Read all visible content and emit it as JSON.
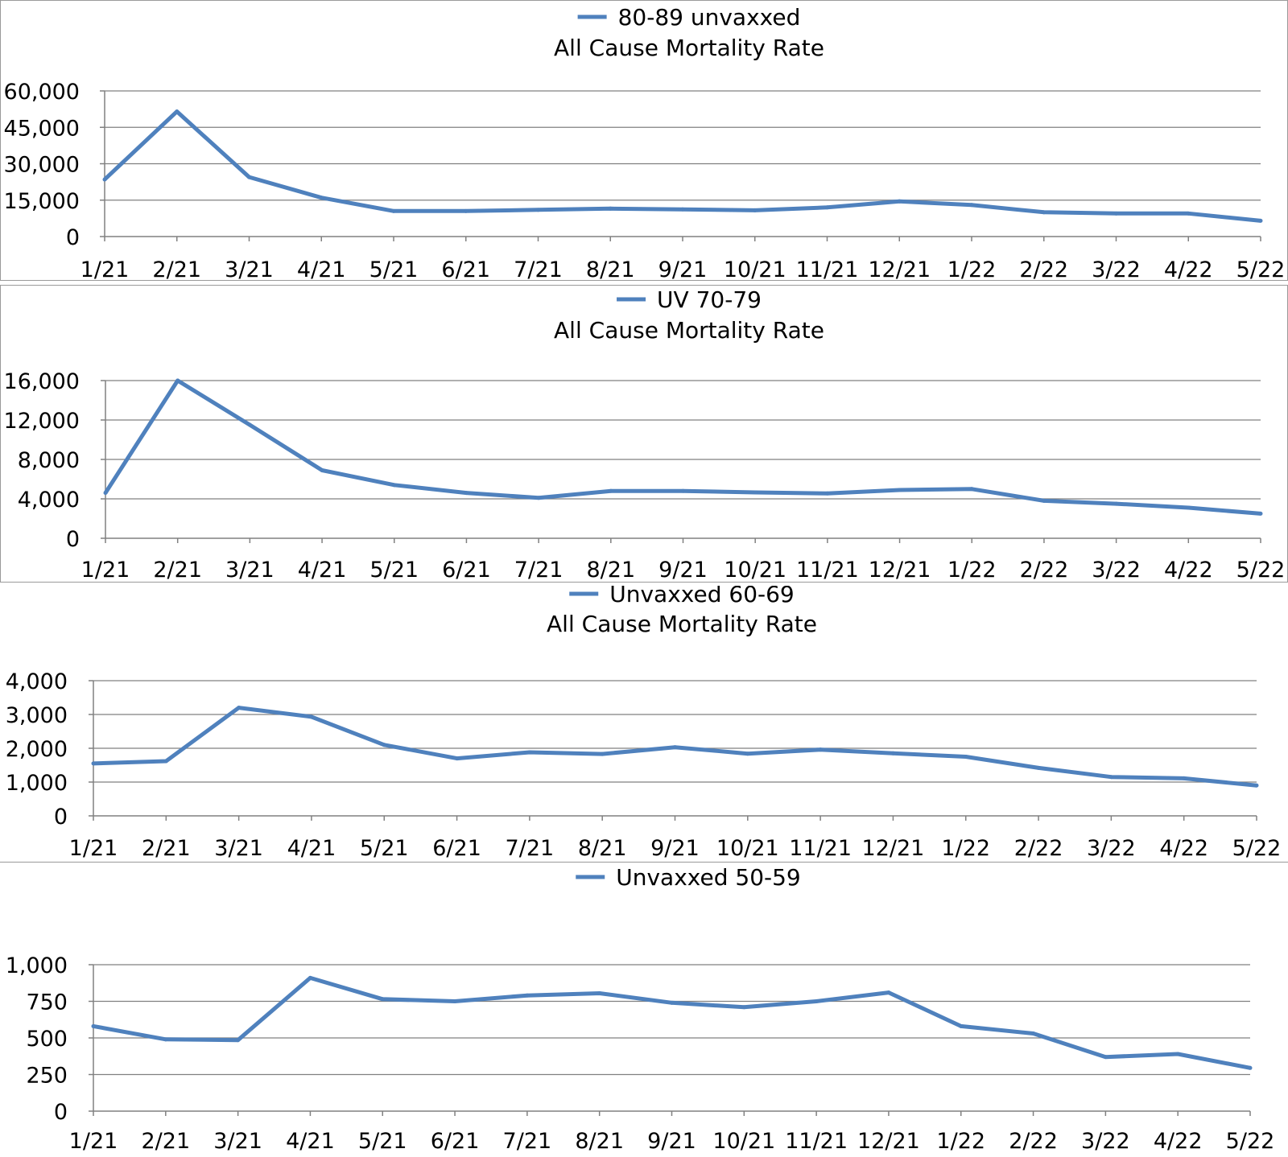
{
  "chart_data": [
    {
      "type": "line",
      "subtitle": "All Cause Mortality Rate",
      "categories": [
        "1/21",
        "2/21",
        "3/21",
        "4/21",
        "5/21",
        "6/21",
        "7/21",
        "8/21",
        "9/21",
        "10/21",
        "11/21",
        "12/21",
        "1/22",
        "2/22",
        "3/22",
        "4/22",
        "5/22"
      ],
      "series": [
        {
          "name": "80-89 unvaxxed",
          "values": [
            23500,
            51500,
            24500,
            16000,
            10500,
            10500,
            11000,
            11500,
            11200,
            10800,
            12000,
            14500,
            13000,
            10000,
            9500,
            9500,
            6500
          ]
        }
      ],
      "ylim": [
        0,
        60000
      ],
      "yticks": [
        0,
        15000,
        30000,
        45000,
        60000
      ],
      "ytick_labels": [
        "0",
        "15,000",
        "30,000",
        "45,000",
        "60,000"
      ],
      "grid": true,
      "legend": "top",
      "color": "#4F81BD"
    },
    {
      "type": "line",
      "subtitle": "All Cause Mortality Rate",
      "categories": [
        "1/21",
        "2/21",
        "3/21",
        "4/21",
        "5/21",
        "6/21",
        "7/21",
        "8/21",
        "9/21",
        "10/21",
        "11/21",
        "12/21",
        "1/22",
        "2/22",
        "3/22",
        "4/22",
        "5/22"
      ],
      "series": [
        {
          "name": "UV 70-79",
          "values": [
            4600,
            16000,
            11500,
            6900,
            5400,
            4600,
            4100,
            4800,
            4800,
            4650,
            4550,
            4900,
            5000,
            3800,
            3500,
            3100,
            2500
          ]
        }
      ],
      "ylim": [
        0,
        16000
      ],
      "yticks": [
        0,
        4000,
        8000,
        12000,
        16000
      ],
      "ytick_labels": [
        "0",
        "4,000",
        "8,000",
        "12,000",
        "16,000"
      ],
      "grid": true,
      "legend": "top",
      "color": "#4F81BD"
    },
    {
      "type": "line",
      "subtitle": "All Cause Mortality Rate",
      "categories": [
        "1/21",
        "2/21",
        "3/21",
        "4/21",
        "5/21",
        "6/21",
        "7/21",
        "8/21",
        "9/21",
        "10/21",
        "11/21",
        "12/21",
        "1/22",
        "2/22",
        "3/22",
        "4/22",
        "5/22"
      ],
      "series": [
        {
          "name": "Unvaxxed 60-69",
          "values": [
            1550,
            1620,
            3200,
            2930,
            2100,
            1700,
            1880,
            1830,
            2030,
            1840,
            1960,
            1850,
            1750,
            1420,
            1150,
            1110,
            900
          ]
        }
      ],
      "ylim": [
        0,
        4000
      ],
      "yticks": [
        0,
        1000,
        2000,
        3000,
        4000
      ],
      "ytick_labels": [
        "0",
        "1,000",
        "2,000",
        "3,000",
        "4,000"
      ],
      "grid": true,
      "legend": "top",
      "color": "#4F81BD"
    },
    {
      "type": "line",
      "subtitle": "",
      "categories": [
        "1/21",
        "2/21",
        "3/21",
        "4/21",
        "5/21",
        "6/21",
        "7/21",
        "8/21",
        "9/21",
        "10/21",
        "11/21",
        "12/21",
        "1/22",
        "2/22",
        "3/22",
        "4/22",
        "5/22"
      ],
      "series": [
        {
          "name": "Unvaxxed 50-59",
          "values": [
            580,
            490,
            485,
            910,
            765,
            750,
            790,
            805,
            740,
            710,
            750,
            810,
            580,
            530,
            370,
            390,
            295
          ]
        }
      ],
      "ylim": [
        0,
        1000
      ],
      "yticks": [
        0,
        250,
        500,
        750,
        1000
      ],
      "ytick_labels": [
        "0",
        "250",
        "500",
        "750",
        "1,000"
      ],
      "grid": true,
      "legend": "top",
      "color": "#4F81BD"
    }
  ]
}
